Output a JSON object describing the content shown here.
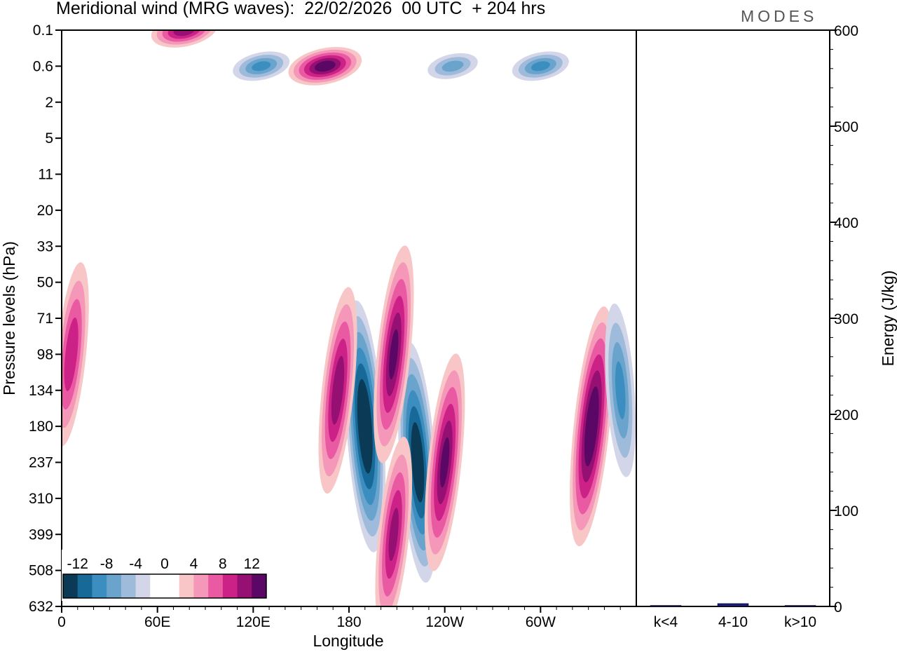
{
  "header": {
    "title": "Meridional wind (MRG waves):  22/02/2026  00 UTC  + 204 hrs",
    "brand": "MODES"
  },
  "chart_data": [
    {
      "type": "contour",
      "title": "Meridional wind (MRG waves):  22/02/2026  00 UTC  + 204 hrs",
      "xlabel": "Longitude",
      "ylabel": "Pressure levels (hPa)",
      "xlim": [
        0,
        360
      ],
      "x_ticks": [
        "0",
        "60E",
        "120E",
        "180",
        "120W",
        "60W"
      ],
      "x_tick_values": [
        0,
        60,
        120,
        180,
        240,
        300
      ],
      "y_ticks": [
        "0.1",
        "0.6",
        "2",
        "5",
        "11",
        "20",
        "33",
        "50",
        "71",
        "98",
        "134",
        "180",
        "237",
        "310",
        "399",
        "508",
        "632"
      ],
      "colorbar": {
        "labels": [
          "-12",
          "-8",
          "-4",
          "0",
          "4",
          "8",
          "12"
        ],
        "label_values": [
          -12,
          -8,
          -4,
          0,
          4,
          8,
          12
        ],
        "levels": [
          -14,
          -12,
          -10,
          -8,
          -6,
          -4,
          -2,
          0,
          2,
          4,
          6,
          8,
          10,
          12,
          14
        ],
        "colors": [
          "#0b3a56",
          "#176a98",
          "#3d8ec0",
          "#6aa4cc",
          "#9fbbdb",
          "#d3d6e8",
          "#ffffff",
          "#ffffff",
          "#f8c6c6",
          "#f497b9",
          "#ea5aa3",
          "#cc2287",
          "#951072",
          "#5b0765"
        ]
      },
      "features": [
        {
          "lon": 190,
          "level": "180",
          "value": -15
        },
        {
          "lon": 223,
          "level": "237",
          "value": -14
        },
        {
          "lon": 173,
          "level": "134",
          "value": 11
        },
        {
          "lon": 240,
          "level": "237",
          "value": 12
        },
        {
          "lon": 208,
          "level": "399",
          "value": 10
        },
        {
          "lon": 208,
          "level": "98",
          "value": 12
        },
        {
          "lon": 332,
          "level": "180",
          "value": 14
        },
        {
          "lon": 350,
          "level": "134",
          "value": -8
        },
        {
          "lon": 245,
          "level": "0.6",
          "value": -6
        },
        {
          "lon": 300,
          "level": "0.6",
          "value": -8
        },
        {
          "lon": 165,
          "level": "0.6",
          "value": 13
        },
        {
          "lon": 77,
          "level": "0.1",
          "value": 11
        },
        {
          "lon": 125,
          "level": "0.6",
          "value": -8
        },
        {
          "lon": 6,
          "level": "98",
          "value": 9
        }
      ]
    },
    {
      "type": "bar",
      "ylabel": "Energy (J/kg)",
      "categories": [
        "k<4",
        "4-10",
        "k>10"
      ],
      "values": [
        0.3,
        3,
        0.3
      ],
      "ylim": [
        0,
        600
      ],
      "y_ticks": [
        "0",
        "100",
        "200",
        "300",
        "400",
        "500",
        "600"
      ],
      "y_tick_values": [
        0,
        100,
        200,
        300,
        400,
        500,
        600
      ],
      "bar_color": "#1a1a7a"
    }
  ]
}
